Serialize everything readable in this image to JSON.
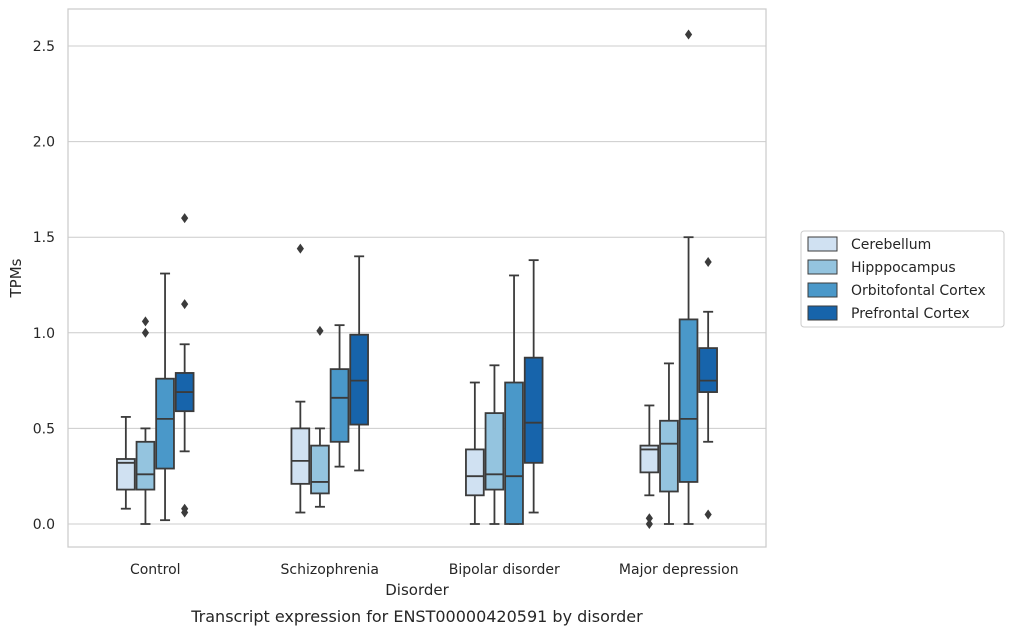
{
  "chart_data": {
    "type": "box",
    "title": "Transcript expression for ENST00000420591 by disorder",
    "xlabel": "Disorder",
    "ylabel": "TPMs",
    "ylim": [
      -0.12,
      2.67
    ],
    "yticks": [
      0.0,
      0.5,
      1.0,
      1.5,
      2.0,
      2.5
    ],
    "ytick_labels": [
      "0.0",
      "0.5",
      "1.0",
      "1.5",
      "2.0",
      "2.5"
    ],
    "grid": "horizontal",
    "legend_position": "right",
    "categories": [
      "Control",
      "Schizophrenia",
      "Bipolar disorder",
      "Major depression"
    ],
    "series": [
      {
        "name": "Cerebellum",
        "color": "#d0e1f2",
        "boxes": [
          {
            "whisker_low": 0.08,
            "q1": 0.18,
            "median": 0.32,
            "q3": 0.34,
            "whisker_high": 0.56,
            "outliers": []
          },
          {
            "whisker_low": 0.06,
            "q1": 0.21,
            "median": 0.33,
            "q3": 0.5,
            "whisker_high": 0.64,
            "outliers": [
              1.44
            ]
          },
          {
            "whisker_low": 0.0,
            "q1": 0.15,
            "median": 0.25,
            "q3": 0.39,
            "whisker_high": 0.74,
            "outliers": []
          },
          {
            "whisker_low": 0.15,
            "q1": 0.27,
            "median": 0.39,
            "q3": 0.41,
            "whisker_high": 0.62,
            "outliers": [
              0.0,
              0.03
            ]
          }
        ]
      },
      {
        "name": "Hipppocampus",
        "color": "#94c4df",
        "boxes": [
          {
            "whisker_low": 0.0,
            "q1": 0.18,
            "median": 0.26,
            "q3": 0.43,
            "whisker_high": 0.5,
            "outliers": [
              1.0,
              1.06
            ]
          },
          {
            "whisker_low": 0.09,
            "q1": 0.16,
            "median": 0.22,
            "q3": 0.41,
            "whisker_high": 0.5,
            "outliers": [
              1.01
            ]
          },
          {
            "whisker_low": 0.0,
            "q1": 0.18,
            "median": 0.26,
            "q3": 0.58,
            "whisker_high": 0.83,
            "outliers": []
          },
          {
            "whisker_low": 0.0,
            "q1": 0.17,
            "median": 0.42,
            "q3": 0.54,
            "whisker_high": 0.84,
            "outliers": []
          }
        ]
      },
      {
        "name": "Orbitofontal Cortex",
        "color": "#4a98c9",
        "boxes": [
          {
            "whisker_low": 0.02,
            "q1": 0.29,
            "median": 0.55,
            "q3": 0.76,
            "whisker_high": 1.31,
            "outliers": []
          },
          {
            "whisker_low": 0.3,
            "q1": 0.43,
            "median": 0.66,
            "q3": 0.81,
            "whisker_high": 1.04,
            "outliers": []
          },
          {
            "whisker_low": 0.0,
            "q1": 0.0,
            "median": 0.25,
            "q3": 0.74,
            "whisker_high": 1.3,
            "outliers": []
          },
          {
            "whisker_low": 0.0,
            "q1": 0.22,
            "median": 0.55,
            "q3": 1.07,
            "whisker_high": 1.5,
            "outliers": [
              2.56
            ]
          }
        ]
      },
      {
        "name": "Prefrontal Cortex",
        "color": "#1764ab",
        "boxes": [
          {
            "whisker_low": 0.38,
            "q1": 0.59,
            "median": 0.69,
            "q3": 0.79,
            "whisker_high": 0.94,
            "outliers": [
              0.06,
              0.08,
              1.15,
              1.6
            ]
          },
          {
            "whisker_low": 0.28,
            "q1": 0.52,
            "median": 0.75,
            "q3": 0.99,
            "whisker_high": 1.4,
            "outliers": []
          },
          {
            "whisker_low": 0.06,
            "q1": 0.32,
            "median": 0.53,
            "q3": 0.87,
            "whisker_high": 1.38,
            "outliers": []
          },
          {
            "whisker_low": 0.43,
            "q1": 0.69,
            "median": 0.75,
            "q3": 0.92,
            "whisker_high": 1.11,
            "outliers": [
              0.05,
              1.37
            ]
          }
        ]
      }
    ]
  }
}
